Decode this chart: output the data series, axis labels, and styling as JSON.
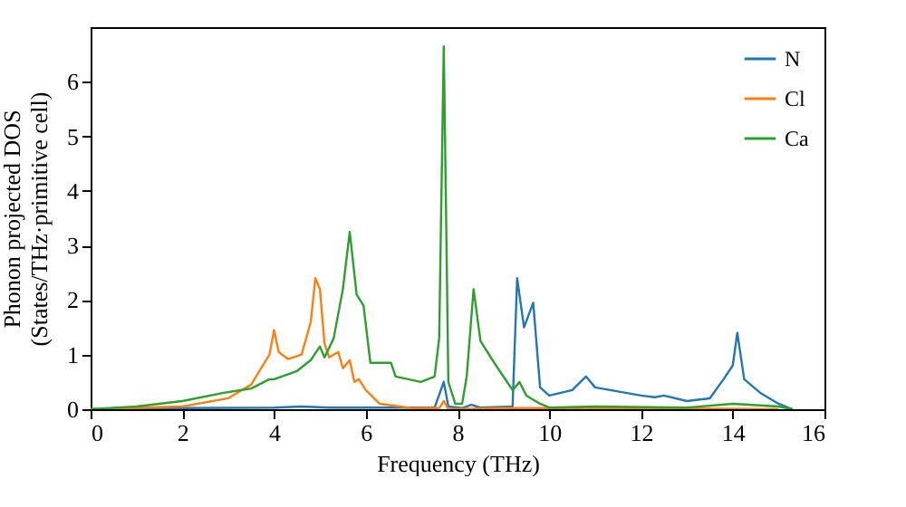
{
  "chart_data": {
    "type": "line",
    "xlabel": "Frequency (THz)",
    "ylabel": "Phonon projected DOS\n(States/THz·primitive cell)",
    "xlim": [
      0,
      16
    ],
    "ylim": [
      0,
      7
    ],
    "xticks": [
      0,
      2,
      4,
      6,
      8,
      10,
      12,
      14,
      16
    ],
    "yticks": [
      0,
      1,
      2,
      3,
      4,
      5,
      6
    ],
    "grid": false,
    "legend": "top right",
    "series": [
      {
        "name": "N",
        "color": "#1f77b4",
        "x": [
          0,
          2,
          4,
          4.6,
          5.2,
          7.5,
          7.7,
          7.8,
          8.1,
          8.3,
          8.5,
          9.2,
          9.3,
          9.45,
          9.65,
          9.8,
          10,
          10.5,
          10.8,
          11,
          12,
          12.3,
          12.5,
          13,
          13.5,
          13.8,
          14,
          14.1,
          14.25,
          14.6,
          15,
          15.3
        ],
        "values": [
          0,
          0.02,
          0.03,
          0.05,
          0.03,
          0.03,
          0.5,
          0.05,
          0.02,
          0.08,
          0.03,
          0.05,
          2.4,
          1.5,
          1.95,
          0.4,
          0.25,
          0.35,
          0.6,
          0.4,
          0.25,
          0.22,
          0.25,
          0.15,
          0.2,
          0.55,
          0.8,
          1.4,
          0.55,
          0.3,
          0.1,
          0
        ]
      },
      {
        "name": "Cl",
        "color": "#ff7f0e",
        "x": [
          0,
          2,
          3,
          3.5,
          3.9,
          4.0,
          4.1,
          4.3,
          4.6,
          4.8,
          4.9,
          5.0,
          5.1,
          5.2,
          5.4,
          5.5,
          5.65,
          5.75,
          5.85,
          6,
          6.3,
          7,
          7.6,
          7.7,
          7.8,
          9,
          12,
          15
        ],
        "values": [
          0,
          0.05,
          0.2,
          0.45,
          1.0,
          1.45,
          1.05,
          0.92,
          1.0,
          1.6,
          2.4,
          2.2,
          1.2,
          0.95,
          1.05,
          0.75,
          0.9,
          0.5,
          0.55,
          0.35,
          0.1,
          0.02,
          0.02,
          0.15,
          0,
          0.02,
          0.02,
          0
        ]
      },
      {
        "name": "Ca",
        "color": "#2ca02c",
        "x": [
          0,
          1,
          2,
          2.9,
          3.5,
          3.9,
          4.0,
          4.5,
          4.8,
          5.0,
          5.1,
          5.3,
          5.5,
          5.65,
          5.8,
          5.95,
          6.1,
          6.55,
          6.65,
          7.2,
          7.5,
          7.6,
          7.7,
          7.8,
          7.95,
          8.1,
          8.2,
          8.35,
          8.5,
          8.8,
          9.2,
          9.35,
          9.5,
          9.8,
          10,
          11,
          13,
          14,
          15,
          15.3
        ],
        "values": [
          0,
          0.05,
          0.15,
          0.3,
          0.38,
          0.55,
          0.55,
          0.7,
          0.9,
          1.15,
          0.95,
          1.3,
          2.2,
          3.25,
          2.1,
          1.9,
          0.85,
          0.85,
          0.6,
          0.5,
          0.6,
          1.3,
          6.65,
          0.5,
          0.1,
          0.1,
          0.6,
          2.2,
          1.25,
          0.85,
          0.35,
          0.5,
          0.25,
          0.1,
          0.03,
          0.05,
          0.03,
          0.1,
          0.05,
          0
        ]
      }
    ]
  }
}
